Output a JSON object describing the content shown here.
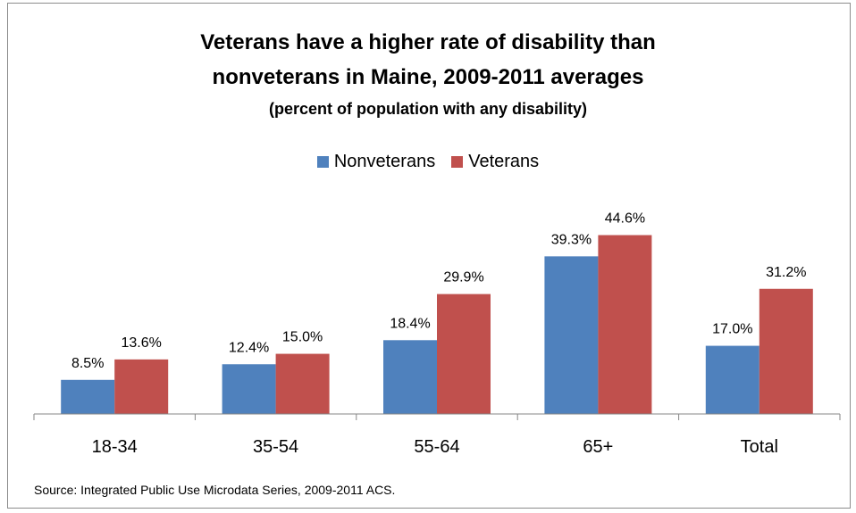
{
  "title_line1": "Veterans have a higher rate of disability than",
  "title_line2": "nonveterans in Maine, 2009-2011 averages",
  "subtitle": "(percent of population with any disability)",
  "legend": {
    "nonveterans": "Nonveterans",
    "veterans": "Veterans"
  },
  "source": "Source: Integrated Public Use Microdata Series, 2009-2011 ACS.",
  "colors": {
    "nonveterans": "#4f81bd",
    "veterans": "#c0504d"
  },
  "chart_data": {
    "type": "bar",
    "title": "Veterans have a higher rate of disability than nonveterans in Maine, 2009-2011 averages",
    "subtitle": "(percent of population with any disability)",
    "categories": [
      "18-34",
      "35-54",
      "55-64",
      "65+",
      "Total"
    ],
    "series": [
      {
        "name": "Nonveterans",
        "values": [
          8.5,
          12.4,
          18.4,
          39.3,
          17.0
        ],
        "labels": [
          "8.5%",
          "12.4%",
          "18.4%",
          "39.3%",
          "17.0%"
        ]
      },
      {
        "name": "Veterans",
        "values": [
          13.6,
          15.0,
          29.9,
          44.6,
          31.2
        ],
        "labels": [
          "13.6%",
          "15.0%",
          "29.9%",
          "44.6%",
          "31.2%"
        ]
      }
    ],
    "xlabel": "",
    "ylabel": "",
    "ylim": [
      0,
      50
    ],
    "grid": false,
    "legend_position": "top"
  }
}
